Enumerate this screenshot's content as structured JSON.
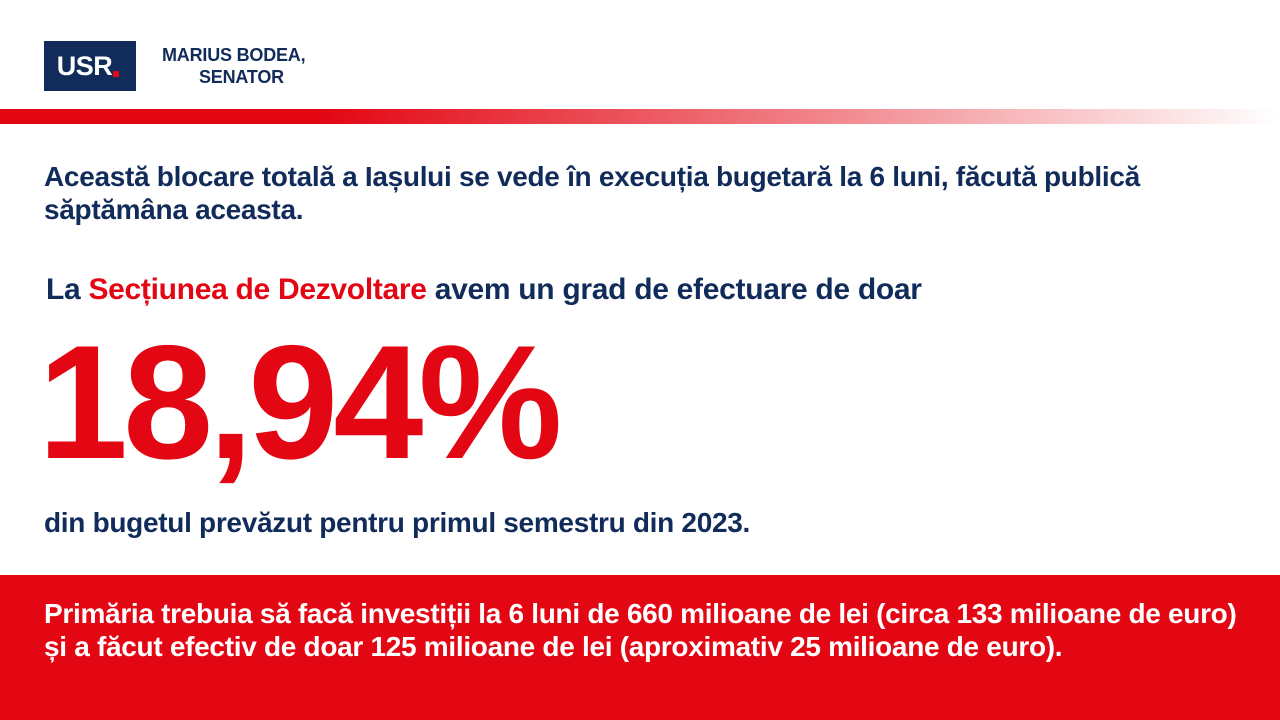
{
  "header": {
    "logo_text": "USR",
    "author_line1": "MARIUS BODEA,",
    "author_line2": "SENATOR"
  },
  "intro": {
    "text": "Această blocare totală a Iașului se vede în execuția bugetară la 6 luni, făcută publică săptămâna aceasta."
  },
  "lead": {
    "prefix": "La ",
    "highlight": "Secțiunea de Dezvoltare",
    "suffix": " avem un grad de efectuare de doar"
  },
  "highlight_value": "18,94%",
  "subtext": "din bugetul prevăzut pentru primul semestru din 2023.",
  "footer": {
    "text": "Primăria trebuia să facă investiții la 6 luni de 660 milioane de lei (circa 133 milioane de euro) și a făcut efectiv de doar 125 milioane de lei (aproximativ 25 milioane de euro)."
  },
  "colors": {
    "navy": "#112b5a",
    "red": "#e30613",
    "white": "#ffffff"
  }
}
